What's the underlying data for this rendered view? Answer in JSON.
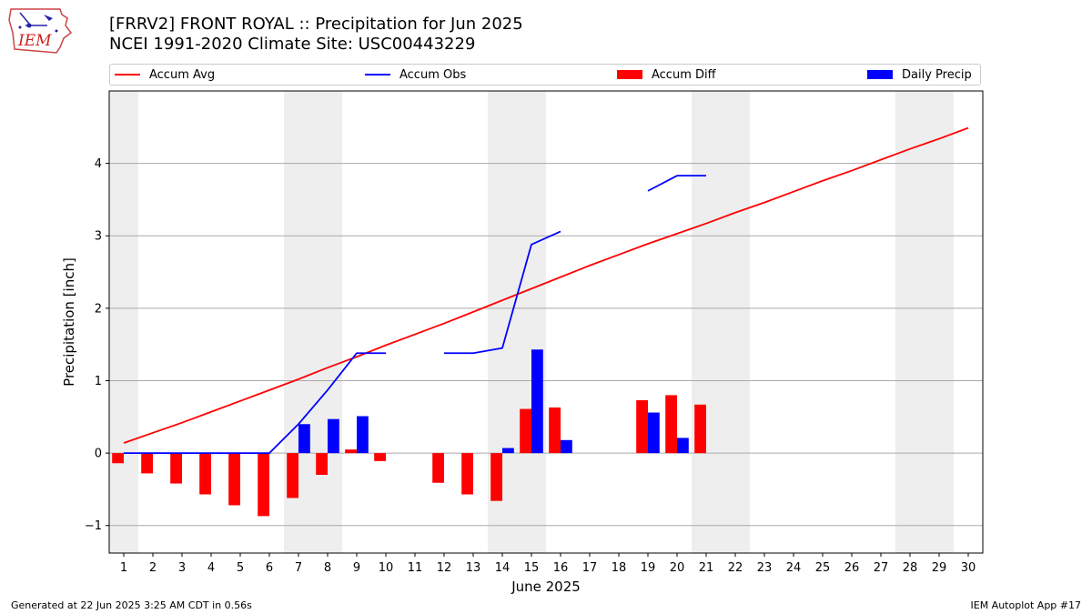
{
  "header": {
    "title_line1": "[FRRV2] FRONT ROYAL :: Precipitation for Jun 2025",
    "title_line2": "NCEI 1991-2020 Climate Site: USC00443229"
  },
  "logo": {
    "text": "IEM",
    "icon": "iem-state-logo-icon"
  },
  "footer": {
    "generated": "Generated at 22 Jun 2025 3:25 AM CDT in 0.56s",
    "app": "IEM Autoplot App #17"
  },
  "legend": {
    "accum_avg": "Accum Avg",
    "accum_obs": "Accum Obs",
    "accum_diff": "Accum Diff",
    "daily_precip": "Daily Precip"
  },
  "colors": {
    "accum_avg": "#ff0000",
    "accum_obs": "#0000ff",
    "accum_diff": "#ff0000",
    "daily_precip": "#0000ff",
    "weekend_shade": "#eeeeee",
    "grid": "#aaaaaa"
  },
  "chart_data": {
    "type": "bar",
    "xlabel": "June 2025",
    "ylabel": "Precipitation [inch]",
    "ylim": [
      -1.38,
      5.0
    ],
    "yticks": [
      -1,
      0,
      1,
      2,
      3,
      4
    ],
    "xlim": [
      0.5,
      30.5
    ],
    "x": [
      1,
      2,
      3,
      4,
      5,
      6,
      7,
      8,
      9,
      10,
      11,
      12,
      13,
      14,
      15,
      16,
      17,
      18,
      19,
      20,
      21,
      22,
      23,
      24,
      25,
      26,
      27,
      28,
      29,
      30
    ],
    "grid": "horizontal",
    "legend_position": "top",
    "weekend_days": [
      1,
      7,
      8,
      14,
      15,
      21,
      22,
      28,
      29
    ],
    "series": [
      {
        "name": "Accum Avg",
        "kind": "line",
        "values": [
          0.14,
          0.28,
          0.42,
          0.57,
          0.72,
          0.87,
          1.02,
          1.18,
          1.33,
          1.49,
          1.64,
          1.79,
          1.95,
          2.11,
          2.27,
          2.43,
          2.59,
          2.74,
          2.89,
          3.03,
          3.17,
          3.32,
          3.46,
          3.61,
          3.76,
          3.9,
          4.05,
          4.2,
          4.34,
          4.49
        ]
      },
      {
        "name": "Accum Obs",
        "kind": "line",
        "values": [
          0,
          0,
          0,
          0,
          0,
          0,
          0.4,
          0.87,
          1.38,
          1.38,
          null,
          1.38,
          1.38,
          1.45,
          2.88,
          3.06,
          null,
          null,
          3.62,
          3.83,
          3.83,
          null,
          null,
          null,
          null,
          null,
          null,
          null,
          null,
          null
        ]
      },
      {
        "name": "Accum Diff",
        "kind": "bar",
        "values": [
          -0.14,
          -0.28,
          -0.42,
          -0.57,
          -0.72,
          -0.87,
          -0.62,
          -0.3,
          0.05,
          -0.11,
          null,
          -0.41,
          -0.57,
          -0.66,
          0.61,
          0.63,
          null,
          null,
          0.73,
          0.8,
          0.67,
          null,
          null,
          null,
          null,
          null,
          null,
          null,
          null,
          null
        ]
      },
      {
        "name": "Daily Precip",
        "kind": "bar",
        "values": [
          0,
          0,
          0,
          0,
          0,
          0,
          0.4,
          0.47,
          0.51,
          0,
          null,
          0,
          0,
          0.07,
          1.43,
          0.18,
          null,
          null,
          0.56,
          0.21,
          0,
          null,
          null,
          null,
          null,
          null,
          null,
          null,
          null,
          null
        ]
      }
    ]
  }
}
